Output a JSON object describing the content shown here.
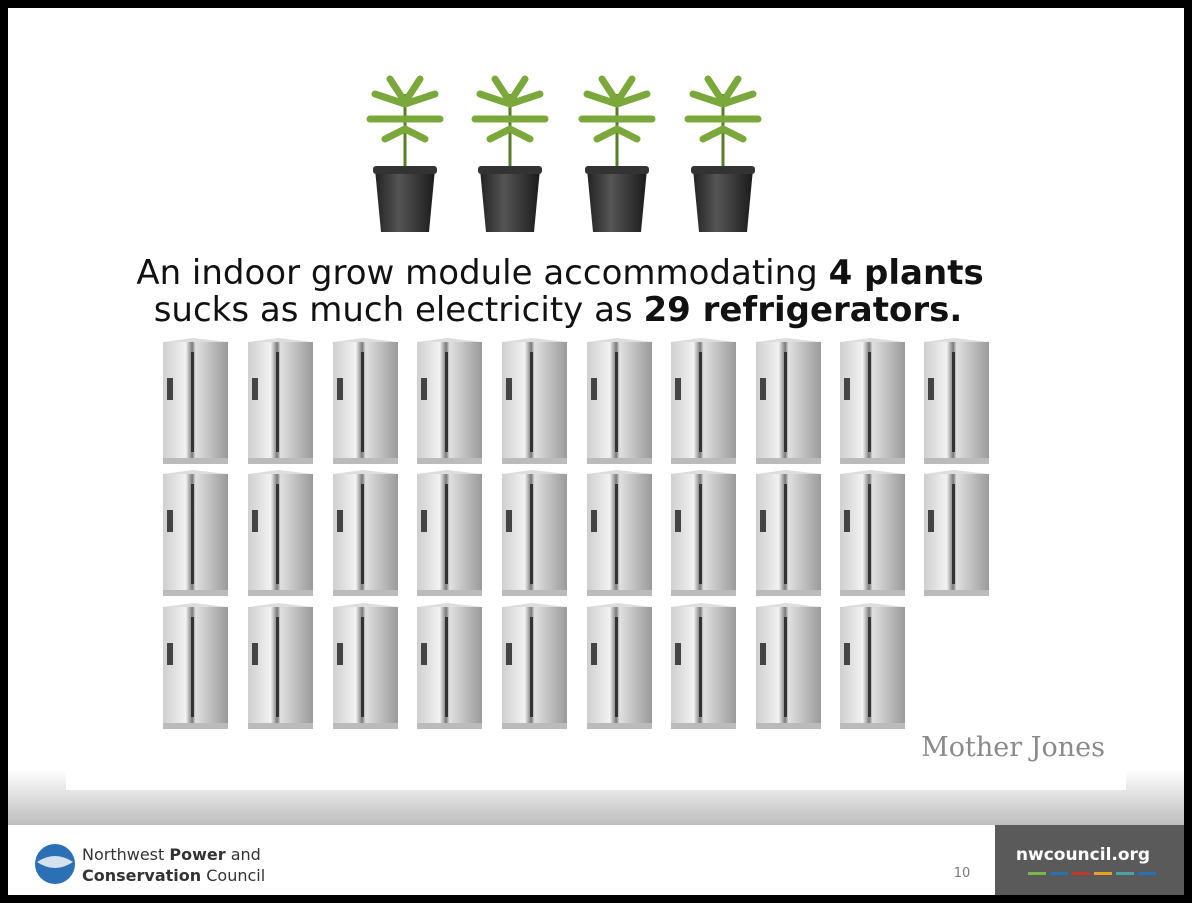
{
  "slide": {
    "headline": {
      "line1": "An indoor grow module accommodating",
      "line1_bold": "4 plants",
      "line2": "sucks as much electricity as",
      "line2_bold": "29 refrigerators."
    },
    "credit": "Mother Jones",
    "footer": {
      "org_line1": "Northwest",
      "org_line1_bold": "Power",
      "org_line1_end": "and",
      "org_line2_bold": "Conservation",
      "org_line2_end": "Council",
      "page_number": "10",
      "website": "nwcouncil.org"
    }
  }
}
